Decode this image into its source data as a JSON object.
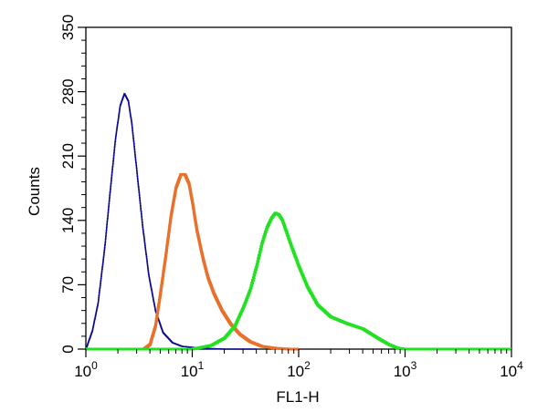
{
  "chart_data": {
    "type": "line",
    "xlabel": "FL1-H",
    "ylabel": "Counts",
    "x_scale": "log",
    "xlim": [
      1,
      10000
    ],
    "ylim": [
      0,
      350
    ],
    "x_ticks": [
      {
        "value": 1,
        "base": "10",
        "exp": "0"
      },
      {
        "value": 10,
        "base": "10",
        "exp": "1"
      },
      {
        "value": 100,
        "base": "10",
        "exp": "2"
      },
      {
        "value": 1000,
        "base": "10",
        "exp": "3"
      },
      {
        "value": 10000,
        "base": "10",
        "exp": "4"
      }
    ],
    "y_ticks": [
      0,
      70,
      140,
      210,
      280,
      350
    ],
    "grid": false,
    "series": [
      {
        "color": "#0a0a8c",
        "x": [
          1.0,
          1.15,
          1.3,
          1.5,
          1.7,
          1.9,
          2.1,
          2.3,
          2.5,
          2.7,
          3.0,
          3.4,
          3.9,
          4.5,
          5.3,
          6.5,
          8.0,
          12.0,
          20.0,
          40.0
        ],
        "y": [
          0,
          20,
          50,
          110,
          175,
          230,
          265,
          278,
          270,
          245,
          195,
          135,
          80,
          42,
          18,
          7,
          3,
          1,
          0,
          0
        ]
      },
      {
        "color": "#e8702a",
        "x": [
          1.0,
          3.5,
          4.0,
          4.5,
          5.0,
          5.6,
          6.3,
          7.0,
          7.8,
          8.5,
          9.3,
          10.0,
          11.0,
          12.5,
          14.0,
          16.0,
          19.0,
          23.0,
          28.0,
          35.0,
          45.0,
          60.0,
          80.0,
          100.0
        ],
        "y": [
          0,
          0,
          5,
          25,
          60,
          100,
          145,
          175,
          190,
          190,
          180,
          160,
          130,
          100,
          78,
          60,
          42,
          27,
          16,
          8,
          3,
          1,
          0,
          0
        ]
      },
      {
        "color": "#22e022",
        "x": [
          1.0,
          10.0,
          15.0,
          20.0,
          25.0,
          30.0,
          35.0,
          40.0,
          45.0,
          50.0,
          55.0,
          60.0,
          65.0,
          70.0,
          75.0,
          85.0,
          100.0,
          120.0,
          150.0,
          200.0,
          280.0,
          400.0,
          550.0,
          700.0,
          850.0,
          1000.0,
          10000.0
        ],
        "y": [
          0,
          0,
          4,
          12,
          25,
          45,
          65,
          90,
          115,
          132,
          142,
          148,
          146,
          140,
          130,
          112,
          90,
          68,
          48,
          35,
          28,
          22,
          12,
          5,
          1,
          0,
          0
        ]
      }
    ]
  }
}
